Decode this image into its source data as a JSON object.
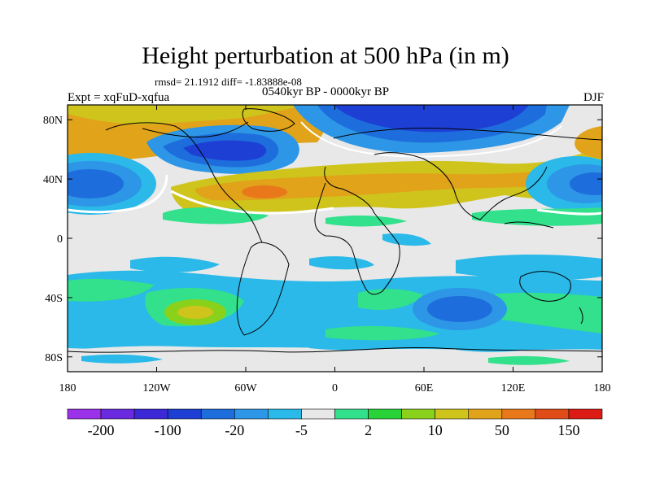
{
  "map": {
    "title": "Height perturbation at 500 hPa (in m)",
    "stats": "rmsd= 21.1912 diff= -1.83888e-08",
    "experiment": "Expt = xqFuD-xqfua",
    "period": "0540kyr BP - 0000kyr BP",
    "season": "DJF",
    "lon_ticks": [
      "180",
      "120W",
      "60W",
      "0",
      "60E",
      "120E",
      "180"
    ],
    "lat_ticks": [
      "80N",
      "40N",
      "0",
      "40S",
      "80S"
    ],
    "colorbar": {
      "colors": [
        "#9b31e8",
        "#6a2be0",
        "#3c28d6",
        "#1d3fd4",
        "#1e6ddc",
        "#2d96e6",
        "#2ab9e8",
        "#e8e8e8",
        "#33e08c",
        "#2ad23a",
        "#8ad11c",
        "#cfc41c",
        "#e0a31a",
        "#e8781a",
        "#e04c18",
        "#dc1c14"
      ],
      "labels": [
        "-200",
        "-100",
        "-20",
        "-5",
        "2",
        "10",
        "50",
        "150"
      ]
    }
  }
}
